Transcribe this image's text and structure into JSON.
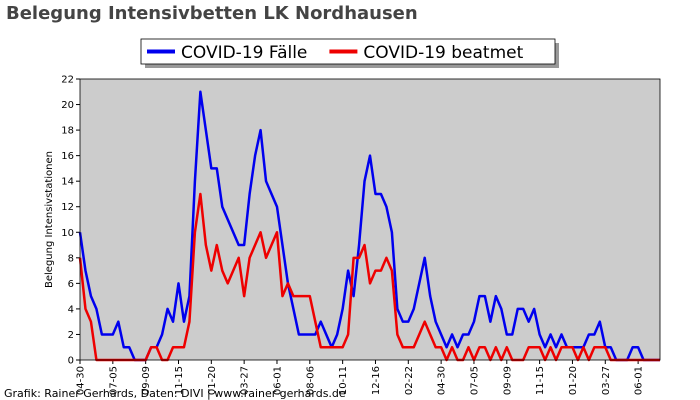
{
  "chart_data": {
    "type": "line",
    "title": "Belegung Intensivbetten LK Nordhausen",
    "y_label": "Belegung Intensivstationen",
    "source": "Grafik: Rainer Gerhards, Daten: DIVI | www.rainer-gerhards.de",
    "categories": [
      "04-30",
      null,
      null,
      null,
      null,
      null,
      "07-05",
      null,
      null,
      null,
      null,
      null,
      "09-09",
      null,
      null,
      null,
      null,
      null,
      "11-15",
      null,
      null,
      null,
      null,
      null,
      "01-20",
      null,
      null,
      null,
      null,
      null,
      "03-27",
      null,
      null,
      null,
      null,
      null,
      "06-01",
      null,
      null,
      null,
      null,
      null,
      "08-06",
      null,
      null,
      null,
      null,
      null,
      "10-11",
      null,
      null,
      null,
      null,
      null,
      "12-16",
      null,
      null,
      null,
      null,
      null,
      "02-22",
      null,
      null,
      null,
      null,
      null,
      "04-30",
      null,
      null,
      null,
      null,
      null,
      "07-05",
      null,
      null,
      null,
      null,
      null,
      "09-09",
      null,
      null,
      null,
      null,
      null,
      "11-15",
      null,
      null,
      null,
      null,
      null,
      "01-20",
      null,
      null,
      null,
      null,
      null,
      "03-27",
      null,
      null,
      null,
      null,
      null,
      "06-01",
      null,
      null,
      null,
      null
    ],
    "series": [
      {
        "name": "COVID-19 Fälle",
        "color": "#0000ee",
        "values": [
          10,
          7,
          5,
          4,
          2,
          2,
          2,
          3,
          1,
          1,
          0,
          0,
          0,
          1,
          1,
          2,
          4,
          3,
          6,
          3,
          5,
          14,
          21,
          18,
          15,
          15,
          12,
          11,
          10,
          9,
          9,
          13,
          16,
          18,
          14,
          13,
          12,
          9,
          6,
          4,
          2,
          2,
          2,
          2,
          3,
          2,
          1,
          2,
          4,
          7,
          5,
          9,
          14,
          16,
          13,
          13,
          12,
          10,
          4,
          3,
          3,
          4,
          6,
          8,
          5,
          3,
          2,
          1,
          2,
          1,
          2,
          2,
          3,
          5,
          5,
          3,
          5,
          4,
          2,
          2,
          4,
          4,
          3,
          4,
          2,
          1,
          2,
          1,
          2,
          1,
          1,
          1,
          1,
          2,
          2,
          3,
          1,
          1,
          0,
          0,
          0,
          1,
          1,
          0,
          0,
          0,
          0
        ]
      },
      {
        "name": "COVID-19 beatmet",
        "color": "#ee0000",
        "values": [
          8,
          4,
          3,
          0,
          0,
          0,
          0,
          0,
          0,
          0,
          0,
          0,
          0,
          1,
          1,
          0,
          0,
          1,
          1,
          1,
          3,
          10,
          13,
          9,
          7,
          9,
          7,
          6,
          7,
          8,
          5,
          8,
          9,
          10,
          8,
          9,
          10,
          5,
          6,
          5,
          5,
          5,
          5,
          3,
          1,
          1,
          1,
          1,
          1,
          2,
          8,
          8,
          9,
          6,
          7,
          7,
          8,
          7,
          2,
          1,
          1,
          1,
          2,
          3,
          2,
          1,
          1,
          0,
          1,
          0,
          0,
          1,
          0,
          1,
          1,
          0,
          1,
          0,
          1,
          0,
          0,
          0,
          1,
          1,
          1,
          0,
          1,
          0,
          1,
          1,
          1,
          0,
          1,
          0,
          1,
          1,
          1,
          0,
          0,
          0,
          0,
          0,
          0,
          0,
          0,
          0,
          0
        ]
      }
    ],
    "ylim": [
      0,
      22
    ],
    "yticks": [
      0,
      2,
      4,
      6,
      8,
      10,
      12,
      14,
      16,
      18,
      20,
      22
    ],
    "legend": "top",
    "background": "#cccccc"
  }
}
